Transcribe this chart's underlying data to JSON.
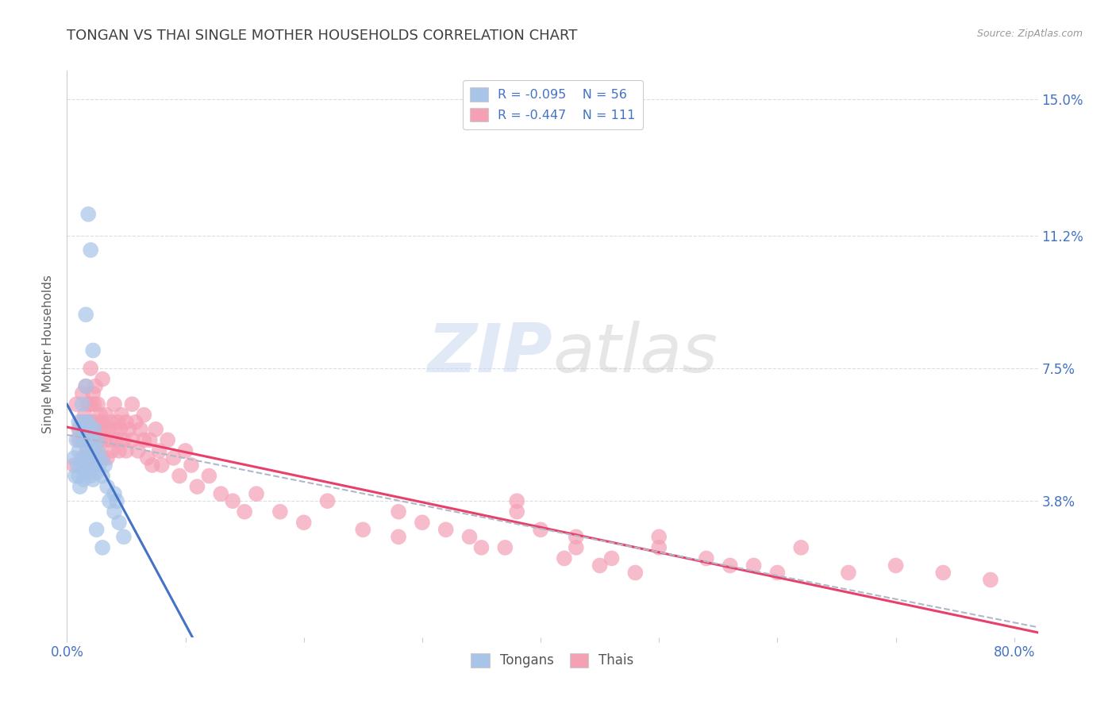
{
  "title": "TONGAN VS THAI SINGLE MOTHER HOUSEHOLDS CORRELATION CHART",
  "source": "Source: ZipAtlas.com",
  "ylabel": "Single Mother Households",
  "ytick_vals": [
    0.0,
    0.038,
    0.075,
    0.112,
    0.15
  ],
  "ytick_labels": [
    "",
    "3.8%",
    "7.5%",
    "11.2%",
    "15.0%"
  ],
  "xtick_vals": [
    0.0,
    0.1,
    0.2,
    0.3,
    0.4,
    0.5,
    0.6,
    0.7,
    0.8
  ],
  "xtick_labels": [
    "0.0%",
    "",
    "",
    "",
    "",
    "",
    "",
    "",
    "80.0%"
  ],
  "xlim": [
    0.0,
    0.82
  ],
  "ylim": [
    0.0,
    0.158
  ],
  "watermark_zip": "ZIP",
  "watermark_atlas": "atlas",
  "legend_r_tongan": "R = -0.095",
  "legend_n_tongan": "N = 56",
  "legend_r_thai": "R = -0.447",
  "legend_n_thai": "N = 111",
  "tongan_color": "#a8c4e8",
  "thai_color": "#f5a0b5",
  "tongan_line_color": "#4472c4",
  "thai_line_color": "#e8406a",
  "dashed_line_color": "#b0b8c8",
  "title_color": "#404040",
  "axis_label_color": "#4472c4",
  "ylabel_color": "#606060",
  "grid_color": "#d8dde8",
  "background_color": "#ffffff",
  "tongan_x": [
    0.006,
    0.007,
    0.008,
    0.009,
    0.01,
    0.01,
    0.01,
    0.011,
    0.011,
    0.012,
    0.012,
    0.013,
    0.013,
    0.014,
    0.014,
    0.015,
    0.015,
    0.016,
    0.016,
    0.016,
    0.017,
    0.017,
    0.018,
    0.018,
    0.019,
    0.019,
    0.02,
    0.02,
    0.02,
    0.021,
    0.021,
    0.022,
    0.022,
    0.023,
    0.023,
    0.024,
    0.025,
    0.025,
    0.026,
    0.027,
    0.028,
    0.03,
    0.032,
    0.034,
    0.036,
    0.04,
    0.04,
    0.042,
    0.044,
    0.048,
    0.02,
    0.018,
    0.016,
    0.022,
    0.025,
    0.03
  ],
  "tongan_y": [
    0.05,
    0.045,
    0.055,
    0.048,
    0.052,
    0.06,
    0.045,
    0.058,
    0.042,
    0.055,
    0.048,
    0.065,
    0.05,
    0.058,
    0.044,
    0.06,
    0.046,
    0.055,
    0.048,
    0.07,
    0.052,
    0.046,
    0.06,
    0.05,
    0.055,
    0.048,
    0.058,
    0.05,
    0.045,
    0.055,
    0.048,
    0.052,
    0.044,
    0.058,
    0.048,
    0.05,
    0.055,
    0.046,
    0.052,
    0.048,
    0.05,
    0.045,
    0.048,
    0.042,
    0.038,
    0.04,
    0.035,
    0.038,
    0.032,
    0.028,
    0.108,
    0.118,
    0.09,
    0.08,
    0.03,
    0.025
  ],
  "thai_x": [
    0.006,
    0.008,
    0.01,
    0.01,
    0.012,
    0.013,
    0.014,
    0.015,
    0.015,
    0.016,
    0.016,
    0.017,
    0.018,
    0.018,
    0.018,
    0.019,
    0.02,
    0.02,
    0.02,
    0.021,
    0.022,
    0.022,
    0.022,
    0.023,
    0.023,
    0.024,
    0.024,
    0.025,
    0.025,
    0.026,
    0.026,
    0.027,
    0.028,
    0.028,
    0.03,
    0.03,
    0.031,
    0.032,
    0.033,
    0.034,
    0.035,
    0.036,
    0.037,
    0.038,
    0.04,
    0.04,
    0.042,
    0.043,
    0.044,
    0.045,
    0.046,
    0.048,
    0.05,
    0.05,
    0.052,
    0.055,
    0.055,
    0.058,
    0.06,
    0.062,
    0.065,
    0.065,
    0.068,
    0.07,
    0.072,
    0.075,
    0.078,
    0.08,
    0.085,
    0.09,
    0.095,
    0.1,
    0.105,
    0.11,
    0.12,
    0.13,
    0.14,
    0.15,
    0.16,
    0.18,
    0.2,
    0.22,
    0.25,
    0.28,
    0.3,
    0.34,
    0.37,
    0.4,
    0.43,
    0.46,
    0.5,
    0.54,
    0.58,
    0.62,
    0.66,
    0.7,
    0.74,
    0.78,
    0.38,
    0.43,
    0.28,
    0.32,
    0.35,
    0.42,
    0.45,
    0.48,
    0.38,
    0.5,
    0.56,
    0.6,
    0.03
  ],
  "thai_y": [
    0.048,
    0.065,
    0.058,
    0.055,
    0.06,
    0.068,
    0.055,
    0.062,
    0.05,
    0.058,
    0.07,
    0.052,
    0.065,
    0.06,
    0.048,
    0.058,
    0.065,
    0.055,
    0.075,
    0.06,
    0.068,
    0.055,
    0.05,
    0.065,
    0.058,
    0.07,
    0.052,
    0.06,
    0.055,
    0.065,
    0.052,
    0.058,
    0.062,
    0.055,
    0.06,
    0.05,
    0.058,
    0.055,
    0.062,
    0.05,
    0.058,
    0.055,
    0.06,
    0.052,
    0.065,
    0.058,
    0.055,
    0.06,
    0.052,
    0.058,
    0.062,
    0.055,
    0.06,
    0.052,
    0.058,
    0.065,
    0.055,
    0.06,
    0.052,
    0.058,
    0.062,
    0.055,
    0.05,
    0.055,
    0.048,
    0.058,
    0.052,
    0.048,
    0.055,
    0.05,
    0.045,
    0.052,
    0.048,
    0.042,
    0.045,
    0.04,
    0.038,
    0.035,
    0.04,
    0.035,
    0.032,
    0.038,
    0.03,
    0.028,
    0.032,
    0.028,
    0.025,
    0.03,
    0.025,
    0.022,
    0.028,
    0.022,
    0.02,
    0.025,
    0.018,
    0.02,
    0.018,
    0.016,
    0.035,
    0.028,
    0.035,
    0.03,
    0.025,
    0.022,
    0.02,
    0.018,
    0.038,
    0.025,
    0.02,
    0.018,
    0.072
  ]
}
